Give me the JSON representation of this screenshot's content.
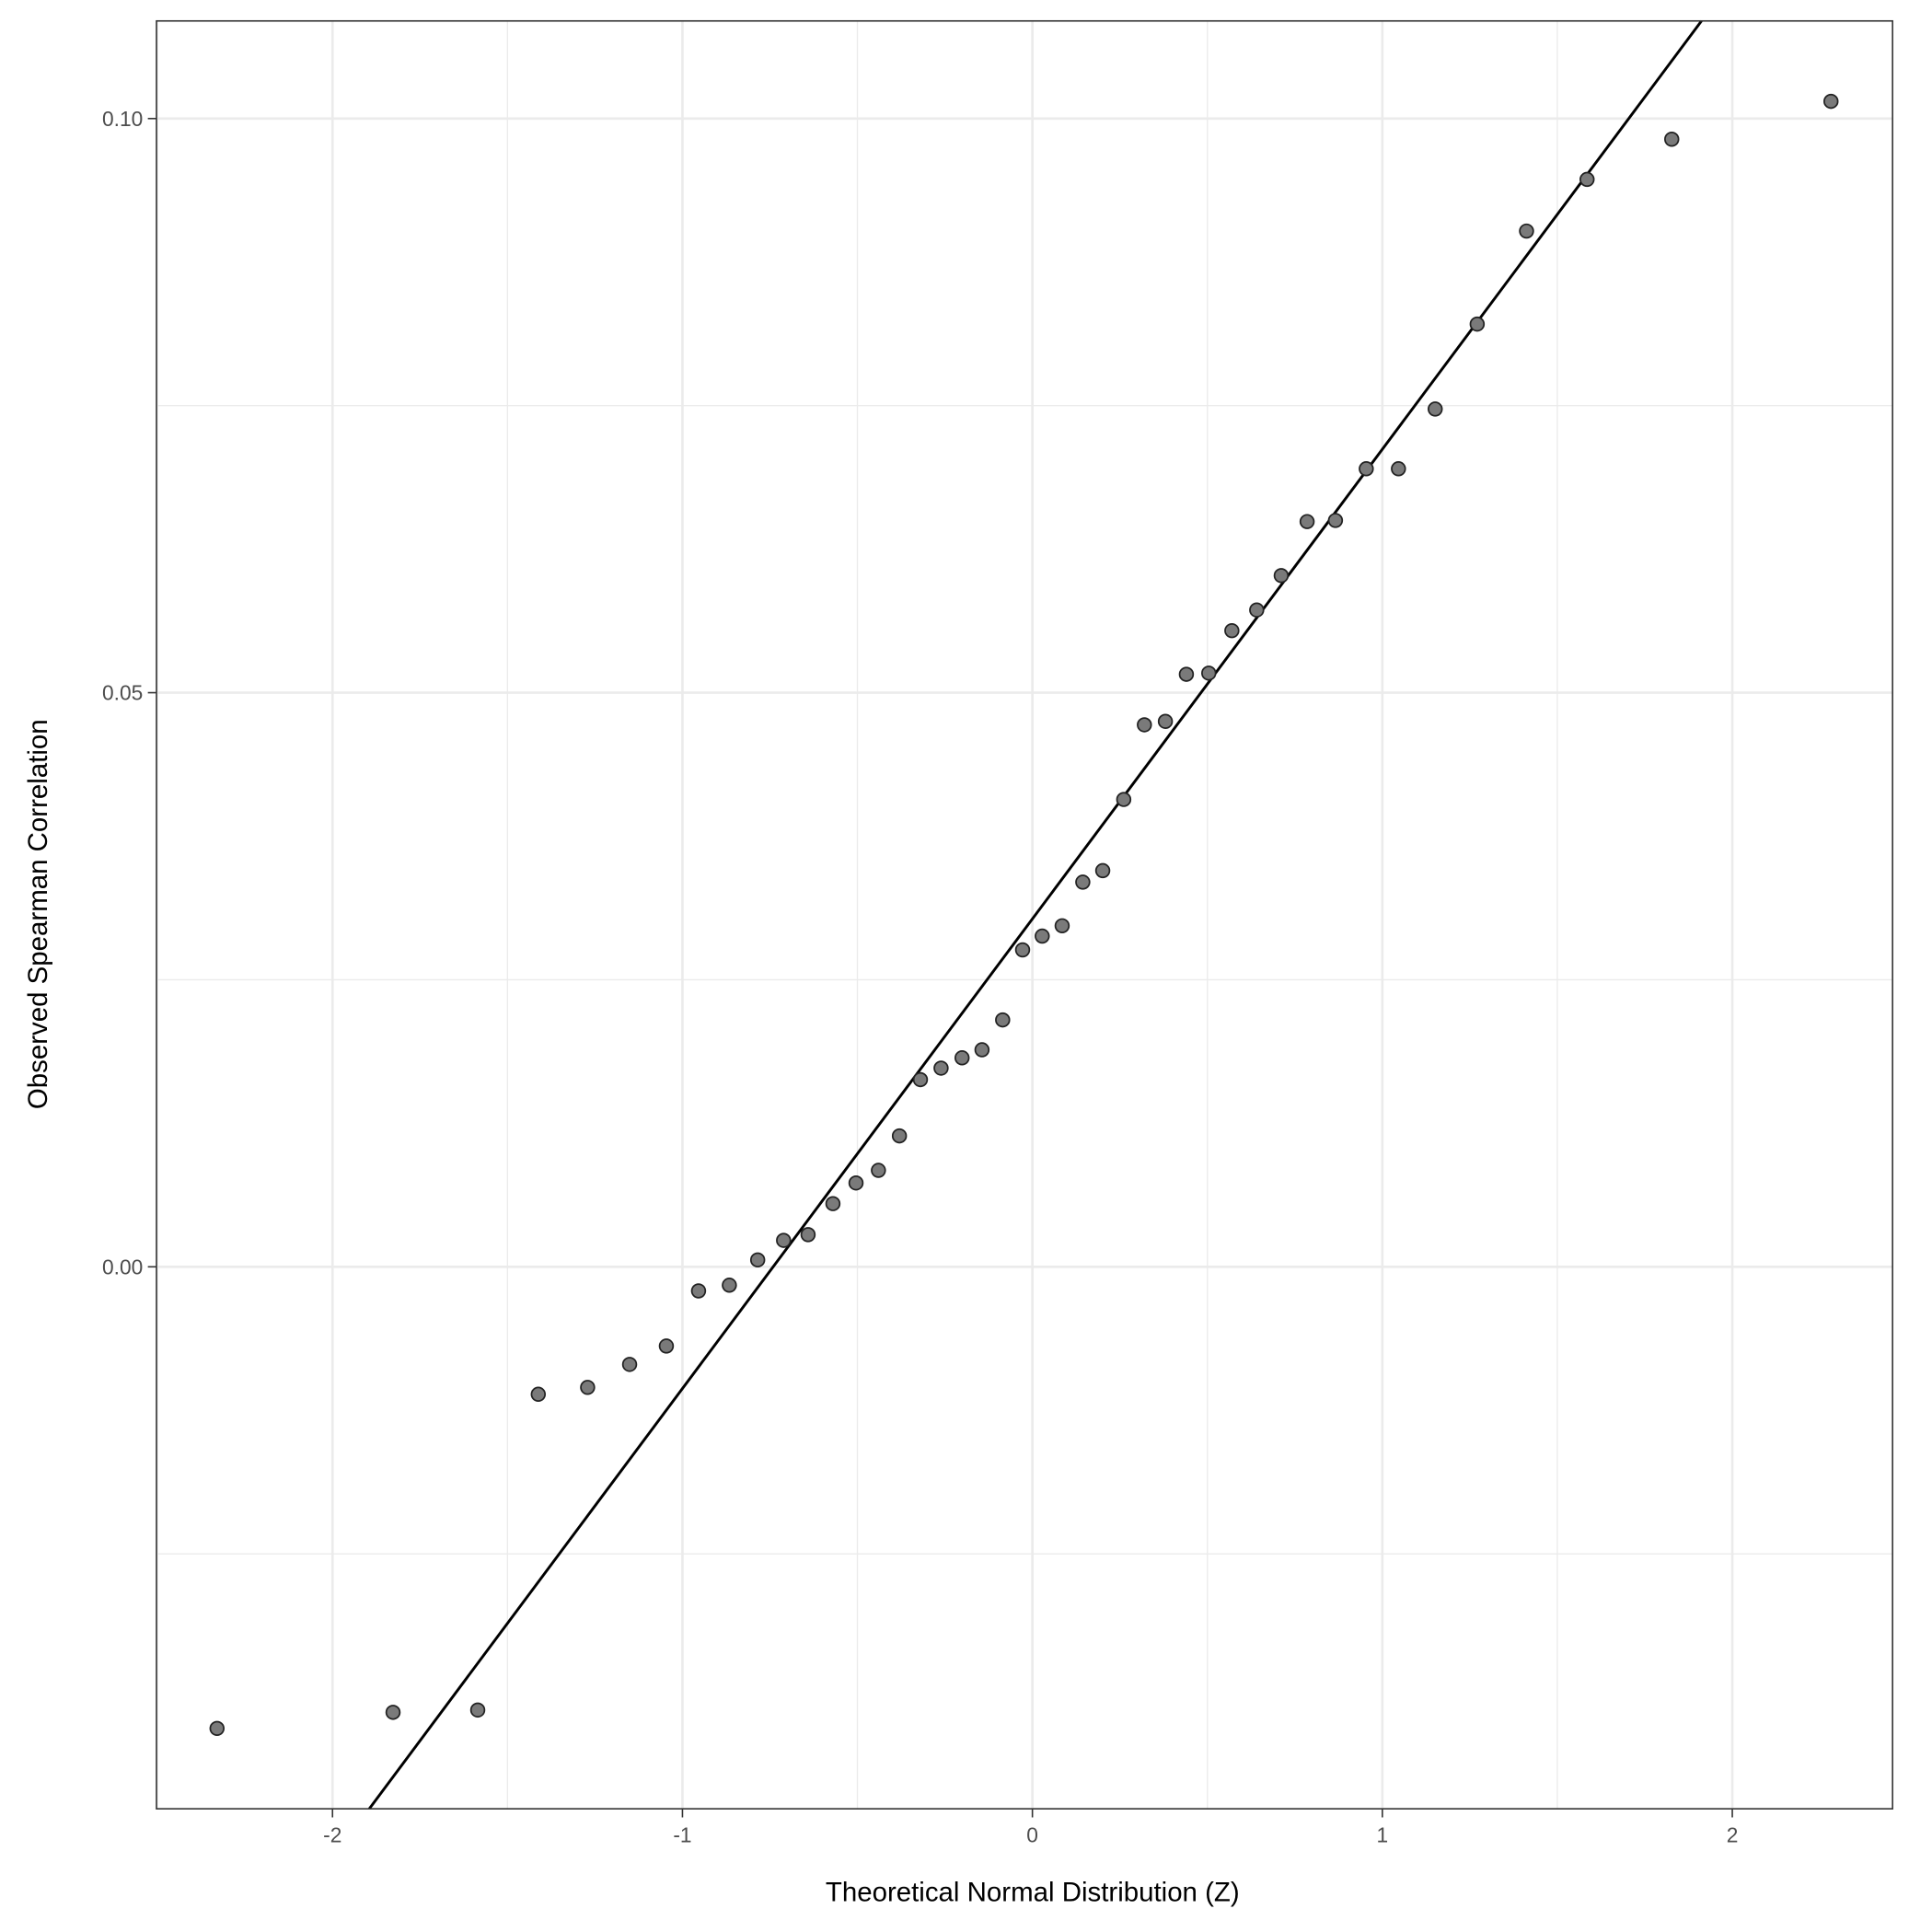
{
  "chart_data": {
    "type": "scatter",
    "title": "",
    "xlabel": "Theoretical Normal Distribution (Z)",
    "ylabel": "Observed Spearman Correlation",
    "xlim": [
      -2.503,
      2.458
    ],
    "ylim": [
      -0.0472,
      0.1085
    ],
    "grid": true,
    "xticks": [
      -2,
      -1,
      0,
      1,
      2
    ],
    "xtick_labels": [
      "-2",
      "-1",
      "0",
      "1",
      "2"
    ],
    "yticks": [
      0.0,
      0.05,
      0.1
    ],
    "ytick_labels": [
      "0.00",
      "0.05",
      "0.10"
    ],
    "x": [
      -2.33,
      -1.827,
      -1.585,
      -1.412,
      -1.271,
      -1.151,
      -1.046,
      -0.954,
      -0.866,
      -0.785,
      -0.711,
      -0.641,
      -0.57,
      -0.504,
      -0.44,
      -0.38,
      -0.32,
      -0.261,
      -0.201,
      -0.144,
      -0.085,
      -0.028,
      0.028,
      0.085,
      0.144,
      0.201,
      0.261,
      0.32,
      0.38,
      0.44,
      0.504,
      0.57,
      0.641,
      0.711,
      0.785,
      0.866,
      0.954,
      1.046,
      1.151,
      1.271,
      1.412,
      1.585,
      1.827,
      2.282
    ],
    "y": [
      -0.0402,
      -0.0388,
      -0.0386,
      -0.0111,
      -0.0105,
      -0.0085,
      -0.0069,
      -0.0021,
      -0.0016,
      0.0006,
      0.0023,
      0.0028,
      0.0055,
      0.0073,
      0.0084,
      0.0114,
      0.0163,
      0.0173,
      0.0182,
      0.0189,
      0.0215,
      0.0276,
      0.0288,
      0.0297,
      0.0335,
      0.0345,
      0.0407,
      0.0472,
      0.0475,
      0.0516,
      0.0517,
      0.0554,
      0.0572,
      0.0602,
      0.0649,
      0.065,
      0.0695,
      0.0695,
      0.0747,
      0.0821,
      0.0902,
      0.0947,
      0.0982,
      0.1015
    ],
    "reference_line": {
      "intercept": 0.0303,
      "slope": 0.0409
    },
    "point_color": "#7a7a7a",
    "line_color": "#000000"
  }
}
